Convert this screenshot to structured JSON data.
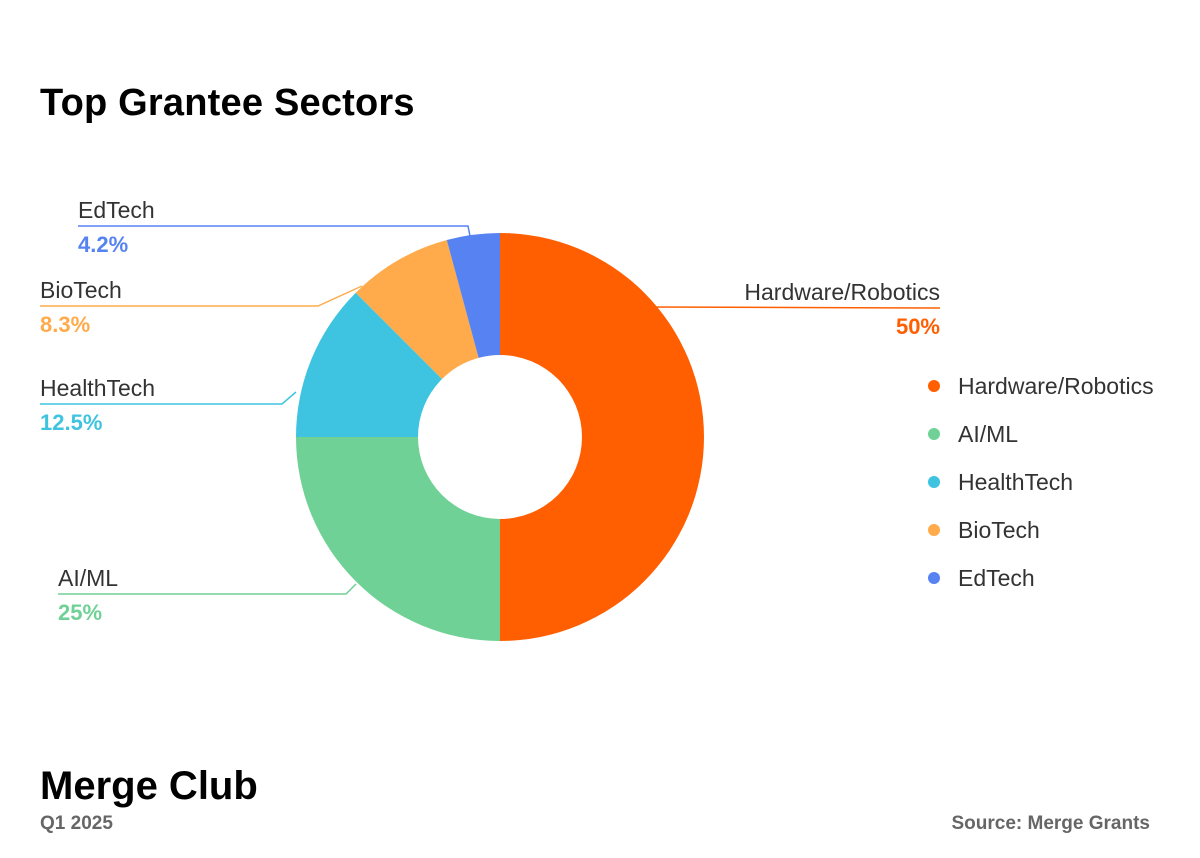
{
  "title": "Top Grantee Sectors",
  "footer": {
    "brand": "Merge Club",
    "period": "Q1 2025",
    "source": "Source: Merge Grants"
  },
  "chart_data": {
    "type": "pie",
    "variant": "donut",
    "title": "Top Grantee Sectors",
    "legend_position": "right",
    "slices": [
      {
        "label": "Hardware/Robotics",
        "value": 50,
        "display": "50%",
        "color": "#ff5f00"
      },
      {
        "label": "AI/ML",
        "value": 25,
        "display": "25%",
        "color": "#70d196"
      },
      {
        "label": "HealthTech",
        "value": 12.5,
        "display": "12.5%",
        "color": "#3ec3e0"
      },
      {
        "label": "BioTech",
        "value": 8.3,
        "display": "8.3%",
        "color": "#ffab4c"
      },
      {
        "label": "EdTech",
        "value": 4.2,
        "display": "4.2%",
        "color": "#5682f2"
      }
    ]
  }
}
